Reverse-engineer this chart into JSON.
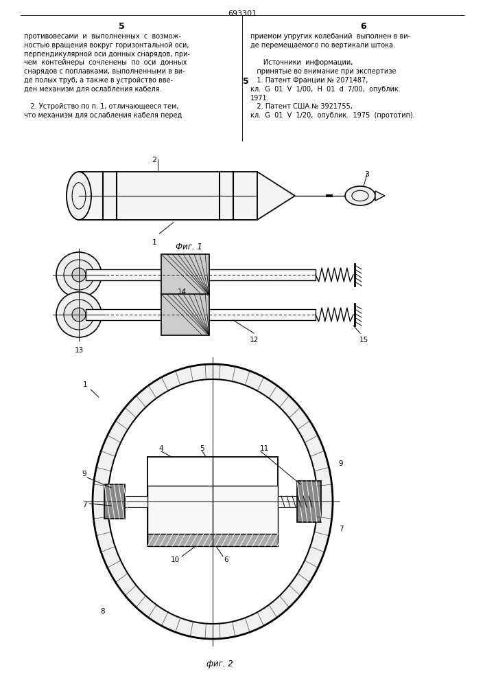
{
  "page_number_center": "693301",
  "col_left_num": "5",
  "col_right_num": "6",
  "text_left": [
    "противовесами  и  выполненных  с  возмож-",
    "ностью вращения вокруг горизонтальной оси,",
    "перпендикулярной оси донных снарядов, при-",
    "чем  контейнеры  сочленены  по  оси  донных",
    "снарядов с поплавками, выполненными в ви-",
    "де полых труб, а также в устройство вве-",
    "ден механизм для ослабления кабеля.",
    "",
    "   2. Устройство по п. 1, отличающееся тем,",
    "что механизм для ослабления кабеля перед"
  ],
  "text_right": [
    "приемом упругих колебаний  выполнен в ви-",
    "де перемещаемого по вертикали штока.",
    "",
    "      Источники  информации,",
    "   принятые во внимание при экспертизе",
    "   1. Патент Франции № 2071487,",
    "кл.  G  01  V  1/00,  H  01  d  7/00,  опублик.",
    "1971.",
    "   2. Патент США № 3921755,",
    "кл.  G  01  V  1/20,  опублик.  1975  (прототип)."
  ],
  "fig1_label": "Фиг. 1",
  "fig2_label": "фиг. 2",
  "bg_color": "#ffffff",
  "text_color": "#000000",
  "line_color": "#000000"
}
